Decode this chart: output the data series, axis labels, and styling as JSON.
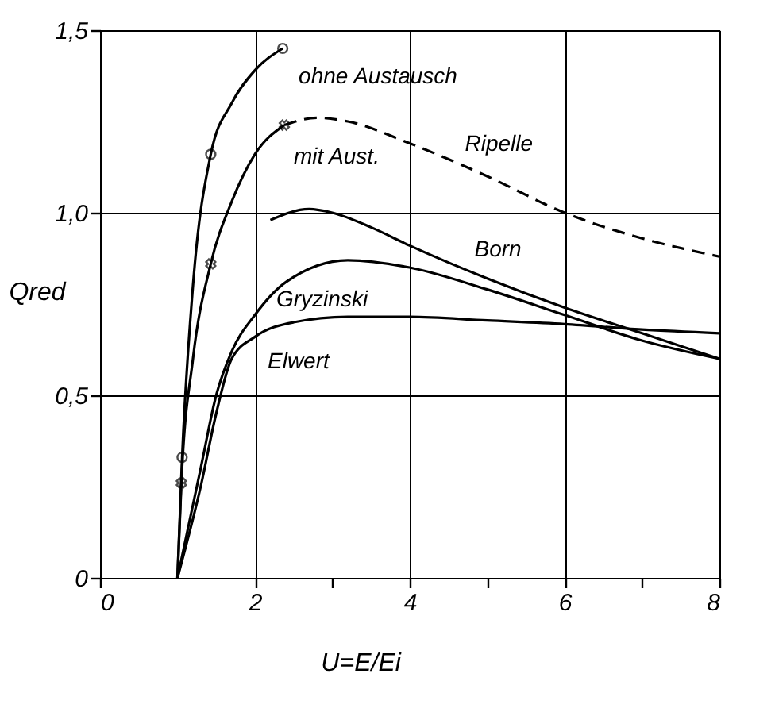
{
  "chart_data": {
    "type": "line",
    "xlabel": "U=E/Ei",
    "ylabel": "Qred",
    "xlim": [
      0,
      8
    ],
    "ylim": [
      0,
      1.5
    ],
    "xticks": [
      0,
      2,
      {
        "value": 3,
        "label": null
      },
      4,
      {
        "value": 5,
        "label": null
      },
      6,
      {
        "value": 7,
        "label": null
      },
      8
    ],
    "yticks": [
      {
        "value": 0,
        "label": "0"
      },
      {
        "value": 0.5,
        "label": "0,5"
      },
      {
        "value": 1.0,
        "label": "1,0"
      },
      {
        "value": 1.5,
        "label": "1,5"
      }
    ],
    "grid": true,
    "marker": "none",
    "series": [
      {
        "name": "ohne Austausch",
        "color": "#000000",
        "line_style": "solid",
        "x": [
          1,
          1.06,
          1.2,
          1.43,
          1.7,
          2.0,
          2.36
        ],
        "values": [
          0,
          0.33,
          0.8,
          1.16,
          1.3,
          1.39,
          1.45
        ]
      },
      {
        "name": "mit Aust.",
        "color": "#000000",
        "line_style": "solid",
        "x": [
          1,
          1.05,
          1.2,
          1.43,
          1.7,
          2.0,
          2.38
        ],
        "values": [
          0,
          0.26,
          0.6,
          0.86,
          1.03,
          1.16,
          1.24
        ]
      },
      {
        "name": "Ripelle",
        "color": "#000000",
        "line_style": "dashed",
        "x": [
          2.38,
          2.8,
          3.2,
          4,
          5,
          6,
          7,
          8
        ],
        "values": [
          1.24,
          1.26,
          1.25,
          1.19,
          1.1,
          1.0,
          0.93,
          0.88
        ]
      },
      {
        "name": "Born",
        "color": "#000000",
        "line_style": "solid",
        "x": [
          2.2,
          2.7,
          3,
          3.5,
          4,
          5,
          6,
          7,
          8
        ],
        "values": [
          0.98,
          1.01,
          1.0,
          0.96,
          0.91,
          0.82,
          0.74,
          0.67,
          0.6
        ]
      },
      {
        "name": "Gryzinski",
        "color": "#000000",
        "line_style": "solid",
        "x": [
          1,
          1.3,
          1.5,
          1.7,
          2,
          2.4,
          3.2,
          4,
          5,
          6,
          7,
          8
        ],
        "values": [
          0,
          0.3,
          0.5,
          0.62,
          0.72,
          0.81,
          0.87,
          0.85,
          0.79,
          0.72,
          0.65,
          0.6
        ]
      },
      {
        "name": "Elwert",
        "color": "#000000",
        "line_style": "solid",
        "x": [
          1,
          1.3,
          1.5,
          1.7,
          2,
          2.5,
          3.2,
          4,
          5,
          6,
          7,
          8
        ],
        "values": [
          0,
          0.25,
          0.45,
          0.6,
          0.66,
          0.7,
          0.715,
          0.715,
          0.705,
          0.695,
          0.68,
          0.67
        ]
      },
      {
        "type": "scatter",
        "marker": "circle",
        "color": "#000000",
        "x": [
          1.06,
          1.43,
          2.36
        ],
        "values": [
          0.33,
          1.16,
          1.45
        ]
      },
      {
        "type": "scatter",
        "marker": "cross",
        "color": "#000000",
        "x": [
          1.05,
          1.43,
          2.38
        ],
        "values": [
          0.26,
          0.86,
          1.24
        ]
      }
    ]
  }
}
